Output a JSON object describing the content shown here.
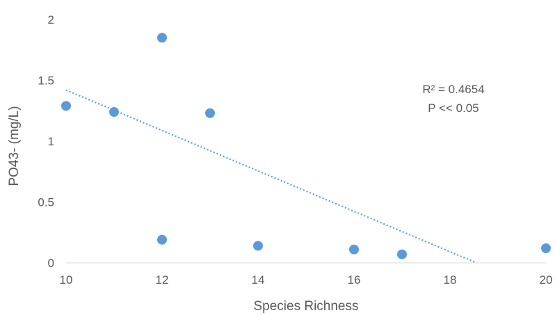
{
  "chart_data": {
    "type": "scatter",
    "title": "",
    "xlabel": "Species Richness",
    "ylabel": "PO43- (mg/L)",
    "xlim": [
      10,
      20
    ],
    "ylim": [
      0,
      2
    ],
    "xticks": [
      "10",
      "12",
      "14",
      "16",
      "18",
      "20"
    ],
    "yticks": [
      "0",
      "0.5",
      "1",
      "1.5",
      "2"
    ],
    "grid": false,
    "legend": "none",
    "marker_color": "#5B9BD5",
    "trendline_color": "#5B9BD5",
    "points": [
      {
        "x": 10,
        "y": 1.29
      },
      {
        "x": 11,
        "y": 1.24
      },
      {
        "x": 12,
        "y": 1.85
      },
      {
        "x": 12,
        "y": 0.19
      },
      {
        "x": 13,
        "y": 1.23
      },
      {
        "x": 14,
        "y": 0.14
      },
      {
        "x": 16,
        "y": 0.11
      },
      {
        "x": 17,
        "y": 0.07
      },
      {
        "x": 20,
        "y": 0.12
      }
    ],
    "trendline": {
      "type": "linear",
      "style": "dotted",
      "x_start": 10,
      "y_start": 1.42,
      "x_end": 18.55,
      "y_end": 0
    },
    "annotations": [
      "R² = 0.4654",
      "P << 0.05"
    ]
  }
}
